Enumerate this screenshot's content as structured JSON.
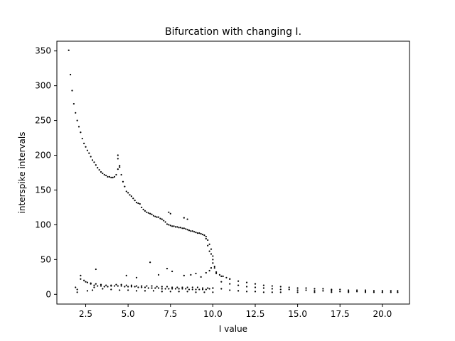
{
  "chart_data": {
    "type": "scatter",
    "title": "Bifurcation with changing I.",
    "xlabel": "I value",
    "ylabel": "interspike intervals",
    "xlim": [
      0.8,
      21.6
    ],
    "ylim": [
      -14,
      364
    ],
    "xticks": [
      2.5,
      5.0,
      7.5,
      10.0,
      12.5,
      15.0,
      17.5,
      20.0
    ],
    "xtick_labels": [
      "2.5",
      "5.0",
      "7.5",
      "10.0",
      "12.5",
      "15.0",
      "17.5",
      "20.0"
    ],
    "yticks": [
      0,
      50,
      100,
      150,
      200,
      250,
      300,
      350
    ],
    "ytick_labels": [
      "0",
      "50",
      "100",
      "150",
      "200",
      "250",
      "300",
      "350"
    ],
    "grid": false,
    "marker_color": "#000000",
    "series": [
      {
        "x": [
          1.5,
          1.6,
          1.7,
          1.8,
          1.9,
          2.0,
          2.1,
          2.2,
          2.3,
          2.4,
          2.5,
          2.6,
          2.7,
          2.8,
          2.9,
          3.0,
          3.1,
          3.2,
          3.3,
          3.4,
          3.5,
          3.6,
          3.7,
          3.8,
          3.9,
          4.0,
          4.1,
          4.2,
          4.3,
          4.4,
          4.5,
          4.6,
          4.7,
          4.8,
          4.9,
          5.0,
          5.1,
          5.2,
          5.3,
          5.4,
          5.5,
          5.6,
          5.7,
          5.8,
          5.9,
          6.0,
          6.1,
          6.2,
          6.3,
          6.4,
          6.5,
          6.6,
          6.7,
          6.8,
          6.9,
          7.0,
          7.1,
          7.2,
          7.3,
          7.4,
          7.5,
          7.6,
          7.7,
          7.8,
          7.9,
          8.0,
          8.1,
          8.2,
          8.3,
          8.4,
          8.5,
          8.6,
          8.7,
          8.8,
          8.9,
          9.0,
          9.1,
          9.2,
          9.3,
          9.4,
          9.5,
          9.6,
          9.7,
          9.8,
          9.9,
          10.0,
          10.1,
          4.4,
          4.4,
          4.5,
          7.4,
          7.5,
          8.3,
          8.5,
          9.6,
          9.7,
          9.8,
          9.9,
          10.0,
          10.0,
          10.1,
          10.2
        ],
        "y": [
          351,
          316,
          293,
          274,
          261,
          250,
          241,
          233,
          224,
          217,
          212,
          207,
          203,
          198,
          193,
          190,
          186,
          182,
          179,
          176,
          174,
          172,
          171,
          169,
          169,
          168,
          168,
          169,
          172,
          180,
          183,
          172,
          162,
          155,
          148,
          146,
          143,
          141,
          138,
          135,
          132,
          131,
          130,
          125,
          122,
          120,
          118,
          117,
          116,
          115,
          113,
          112,
          111,
          111,
          109,
          108,
          106,
          104,
          101,
          100,
          99,
          98,
          98,
          97,
          97,
          96,
          96,
          95,
          95,
          94,
          93,
          92,
          91,
          91,
          90,
          89,
          88,
          88,
          87,
          86,
          85,
          83,
          78,
          72,
          65,
          55,
          40,
          200,
          195,
          185,
          118,
          116,
          110,
          108,
          80,
          70,
          62,
          58,
          50,
          45,
          38,
          32
        ]
      },
      {
        "x": [
          2.0,
          2.2,
          2.4,
          2.6,
          2.8,
          3.0,
          3.2,
          3.4,
          3.6,
          3.8,
          4.0,
          4.2,
          4.4,
          4.6,
          4.8,
          5.0,
          5.2,
          5.4,
          5.6,
          5.8,
          6.0,
          6.2,
          6.4,
          6.6,
          6.8,
          7.0,
          7.2,
          7.4,
          7.6,
          7.8,
          8.0,
          8.2,
          8.4,
          8.6,
          8.8,
          9.0,
          9.2,
          9.4,
          9.6,
          9.8,
          10.0,
          10.5,
          11.0,
          11.5,
          12.0,
          12.5,
          13.0,
          13.5,
          14.0,
          14.5,
          15.0,
          15.5,
          16.0,
          16.5,
          17.0,
          17.5,
          18.0,
          18.5,
          19.0,
          19.5,
          20.0,
          20.5,
          20.9,
          2.2,
          2.5,
          2.8,
          3.1,
          3.4,
          3.7,
          4.0,
          4.3,
          4.6,
          4.9,
          5.2,
          5.5,
          5.8,
          6.1,
          6.4,
          6.7,
          7.0,
          7.3,
          7.6,
          7.9,
          8.2,
          8.5,
          8.8,
          9.1,
          9.4,
          9.7,
          10.0,
          10.5,
          11.0,
          11.5,
          12.0,
          12.5,
          13.0,
          13.5,
          14.0,
          14.5,
          15.0,
          15.5,
          16.0,
          16.5,
          17.0,
          17.5,
          18.0,
          18.5,
          19.0,
          19.5,
          20.0,
          20.5,
          20.9,
          3.0,
          3.5,
          4.0,
          4.5,
          5.0,
          5.5,
          6.0,
          6.5,
          7.0,
          7.5,
          8.0,
          8.5,
          9.0,
          9.5,
          10.0,
          10.5,
          11.0,
          11.5,
          12.0,
          12.5,
          13.0,
          13.5,
          14.0,
          15.0,
          16.0,
          17.0,
          18.0,
          19.0,
          20.0,
          20.9,
          3.1,
          4.9,
          5.5,
          6.3,
          6.8,
          7.3,
          7.6,
          8.3,
          8.7,
          9.0,
          9.3,
          9.6,
          9.8,
          9.9,
          10.2,
          10.4,
          10.6,
          10.8,
          11.0,
          1.9,
          2.0,
          2.6,
          2.9
        ],
        "y": [
          3,
          27,
          20,
          17,
          15,
          13,
          12,
          12,
          11,
          11,
          12,
          12,
          12,
          12,
          11,
          11,
          11,
          11,
          10,
          10,
          10,
          9,
          9,
          9,
          9,
          8,
          8,
          8,
          8,
          8,
          8,
          8,
          8,
          7,
          7,
          7,
          7,
          7,
          7,
          8,
          9,
          26,
          22,
          19,
          17,
          15,
          13,
          12,
          11,
          10,
          9,
          9,
          8,
          8,
          7,
          7,
          6,
          6,
          6,
          5,
          5,
          5,
          5,
          22,
          18,
          16,
          15,
          14,
          13,
          13,
          14,
          14,
          13,
          13,
          12,
          12,
          12,
          12,
          11,
          11,
          11,
          10,
          10,
          10,
          10,
          10,
          10,
          9,
          9,
          9,
          18,
          15,
          13,
          11,
          10,
          9,
          8,
          7,
          7,
          6,
          6,
          5,
          5,
          5,
          4,
          4,
          4,
          4,
          3,
          3,
          3,
          3,
          10,
          8,
          7,
          6,
          6,
          5,
          5,
          5,
          4,
          4,
          4,
          4,
          3,
          3,
          3,
          8,
          6,
          5,
          4,
          4,
          3,
          3,
          3,
          3,
          3,
          3,
          3,
          3,
          3,
          3,
          36,
          27,
          24,
          46,
          28,
          37,
          33,
          27,
          28,
          30,
          25,
          31,
          34,
          38,
          30,
          28,
          26,
          24,
          22,
          10,
          7,
          5,
          6
        ]
      }
    ]
  }
}
